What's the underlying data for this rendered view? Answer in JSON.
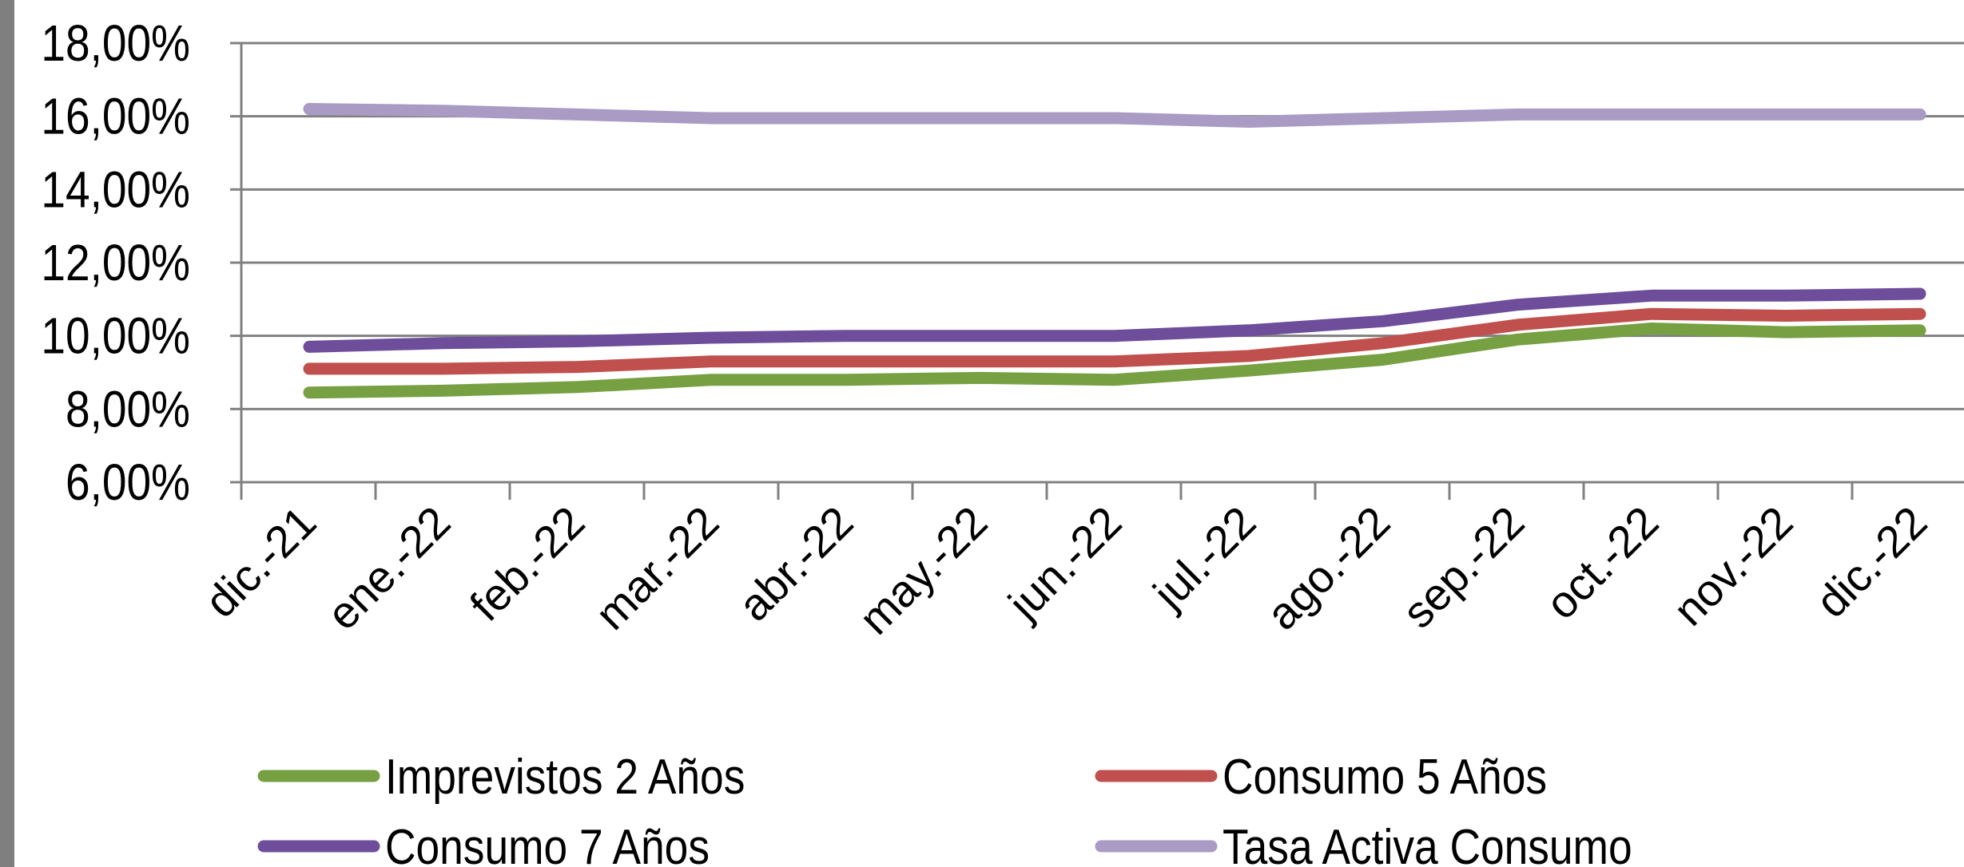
{
  "chart_data": {
    "type": "line",
    "categories": [
      "dic.-21",
      "ene.-22",
      "feb.-22",
      "mar.-22",
      "abr.-22",
      "may.-22",
      "jun.-22",
      "jul.-22",
      "ago.-22",
      "sep.-22",
      "oct.-22",
      "nov.-22",
      "dic.-22"
    ],
    "ylim": [
      6,
      18
    ],
    "yticks": [
      6,
      8,
      10,
      12,
      14,
      16,
      18
    ],
    "ytick_labels": [
      "6,00%",
      "8,00%",
      "10,00%",
      "12,00%",
      "14,00%",
      "16,00%",
      "18,00%"
    ],
    "grid": true,
    "legend_position": "bottom",
    "series": [
      {
        "name": "Imprevistos 2 Años",
        "color": "#77a043",
        "values": [
          8.45,
          8.5,
          8.6,
          8.8,
          8.8,
          8.85,
          8.8,
          9.05,
          9.35,
          9.9,
          10.2,
          10.1,
          10.15
        ]
      },
      {
        "name": "Consumo 5 Años",
        "color": "#c0504d",
        "values": [
          9.1,
          9.1,
          9.15,
          9.3,
          9.3,
          9.3,
          9.3,
          9.45,
          9.8,
          10.3,
          10.6,
          10.55,
          10.6
        ]
      },
      {
        "name": "Consumo 7 Años",
        "color": "#6e4d9b",
        "values": [
          9.7,
          9.8,
          9.85,
          9.95,
          10.0,
          10.0,
          10.0,
          10.15,
          10.4,
          10.85,
          11.1,
          11.1,
          11.15
        ]
      },
      {
        "name": "Tasa Activa Consumo",
        "color": "#a99bc4",
        "values": [
          16.2,
          16.15,
          16.05,
          15.95,
          15.95,
          15.95,
          15.95,
          15.85,
          15.95,
          16.05,
          16.05,
          16.05,
          16.05
        ]
      }
    ]
  }
}
